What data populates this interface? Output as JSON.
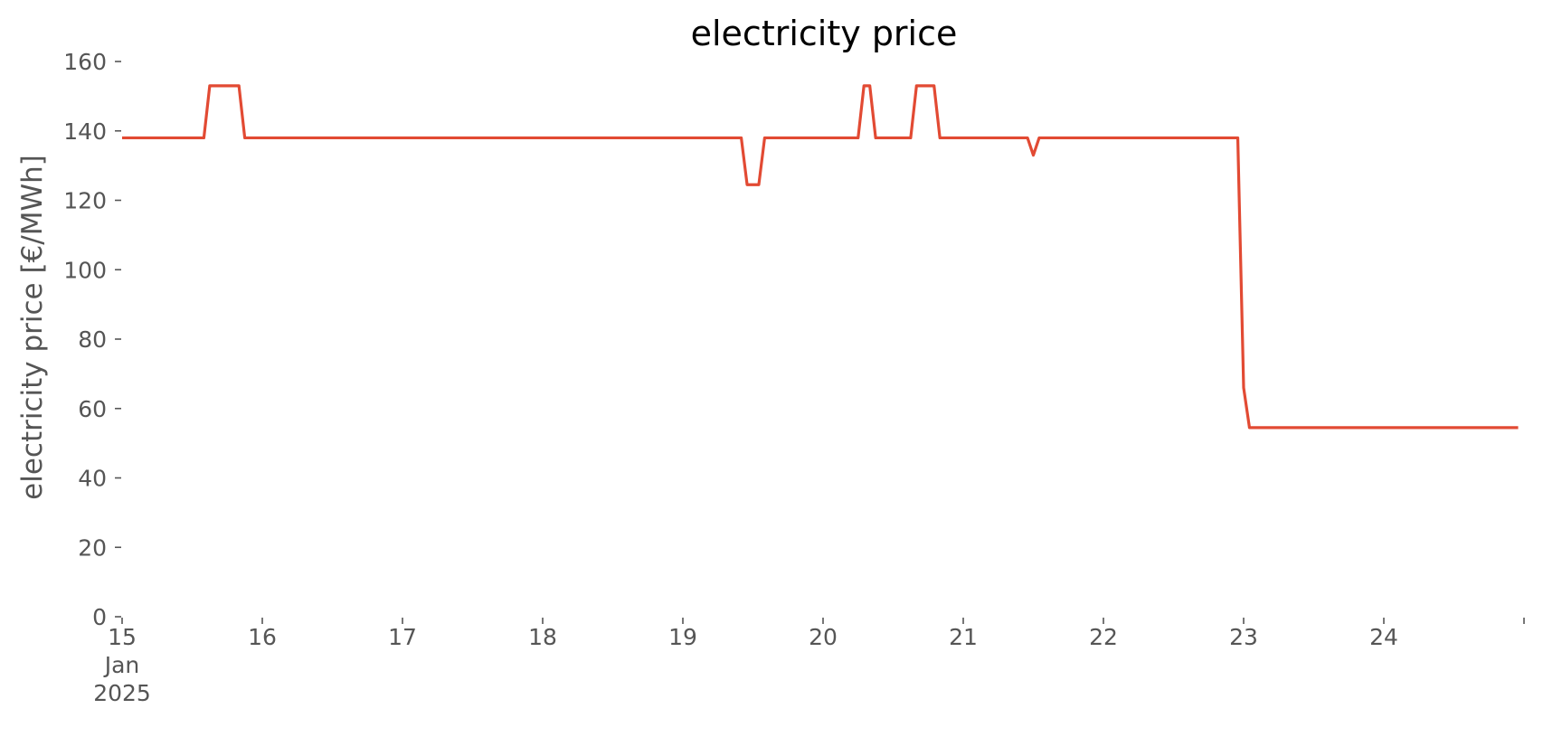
{
  "chart_data": {
    "type": "line",
    "title": "electricity price",
    "xlabel": "",
    "ylabel": "electricity price [€/MWh]",
    "ylim": [
      0,
      160
    ],
    "xlim": [
      "2025-01-15 00:00",
      "2025-01-24 23:00"
    ],
    "yticks": [
      0,
      20,
      40,
      60,
      80,
      100,
      120,
      140,
      160
    ],
    "xticks": [
      {
        "date": "2025-01-15",
        "label": [
          "15",
          "Jan",
          "2025"
        ]
      },
      {
        "date": "2025-01-16",
        "label": [
          "16"
        ]
      },
      {
        "date": "2025-01-17",
        "label": [
          "17"
        ]
      },
      {
        "date": "2025-01-18",
        "label": [
          "18"
        ]
      },
      {
        "date": "2025-01-19",
        "label": [
          "19"
        ]
      },
      {
        "date": "2025-01-20",
        "label": [
          "20"
        ]
      },
      {
        "date": "2025-01-21",
        "label": [
          "21"
        ]
      },
      {
        "date": "2025-01-22",
        "label": [
          "22"
        ]
      },
      {
        "date": "2025-01-23",
        "label": [
          "23"
        ]
      },
      {
        "date": "2025-01-24",
        "label": [
          "24"
        ]
      },
      {
        "date": "2025-01-25",
        "label": [
          ""
        ]
      }
    ],
    "grid": false,
    "series": [
      {
        "color": "#e24a33",
        "points": [
          [
            "2025-01-15 00:00",
            138
          ],
          [
            "2025-01-15 14:00",
            138
          ],
          [
            "2025-01-15 15:00",
            153
          ],
          [
            "2025-01-15 20:00",
            153
          ],
          [
            "2025-01-15 21:00",
            138
          ],
          [
            "2025-01-19 10:00",
            138
          ],
          [
            "2025-01-19 11:00",
            124.5
          ],
          [
            "2025-01-19 13:00",
            124.5
          ],
          [
            "2025-01-19 14:00",
            138
          ],
          [
            "2025-01-20 06:00",
            138
          ],
          [
            "2025-01-20 07:00",
            153
          ],
          [
            "2025-01-20 08:00",
            153
          ],
          [
            "2025-01-20 09:00",
            138
          ],
          [
            "2025-01-20 15:00",
            138
          ],
          [
            "2025-01-20 16:00",
            153
          ],
          [
            "2025-01-20 19:00",
            153
          ],
          [
            "2025-01-20 20:00",
            138
          ],
          [
            "2025-01-21 11:00",
            138
          ],
          [
            "2025-01-21 12:00",
            133
          ],
          [
            "2025-01-21 13:00",
            138
          ],
          [
            "2025-01-22 23:00",
            138
          ],
          [
            "2025-01-23 00:00",
            66
          ],
          [
            "2025-01-23 01:00",
            54.5
          ],
          [
            "2025-01-24 23:00",
            54.5
          ]
        ]
      }
    ]
  }
}
